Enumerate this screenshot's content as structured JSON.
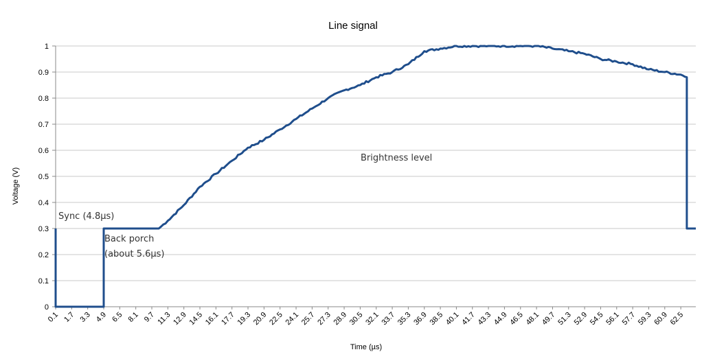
{
  "chart_data": {
    "type": "line",
    "title": "Line signal",
    "xlabel": "Time (µs)",
    "ylabel": "Voltage (V)",
    "ylim": [
      0,
      1
    ],
    "xlim": [
      0.1,
      64.0
    ],
    "grid": "horizontal",
    "legend": "none",
    "series_color": "#1f4e8c",
    "yticks": [
      "0",
      "0.1",
      "0.2",
      "0.3",
      "0.4",
      "0.5",
      "0.6",
      "0.7",
      "0.8",
      "0.9",
      "1"
    ],
    "xticks": [
      "0.1",
      "1.7",
      "3.3",
      "4.9",
      "6.5",
      "8.1",
      "9.7",
      "11.3",
      "12.9",
      "14.5",
      "16.1",
      "17.7",
      "19.3",
      "20.9",
      "22.5",
      "24.1",
      "25.7",
      "27.3",
      "28.9",
      "30.5",
      "32.1",
      "33.7",
      "35.3",
      "36.9",
      "38.5",
      "40.1",
      "41.7",
      "43.3",
      "44.9",
      "46.5",
      "48.1",
      "49.7",
      "51.3",
      "52.9",
      "54.5",
      "56.1",
      "57.7",
      "59.3",
      "60.9",
      "62.5"
    ],
    "annotations": [
      "Sync (4.8µs)",
      "Back porch",
      "(about 5.6µs)",
      "Brightness level"
    ],
    "series": [
      {
        "x": [
          0.1,
          0.1,
          4.9,
          4.9,
          10.4,
          11.3,
          12.9,
          14.5,
          16.1,
          17.7,
          19.3,
          20.9,
          22.5,
          24.1,
          25.7,
          27.3,
          28.9,
          30.5,
          32.1,
          33.7,
          35.3,
          36.9,
          38.5,
          40.1,
          41.7,
          43.3,
          44.9,
          46.5,
          48.1,
          49.7,
          51.3,
          52.9,
          54.5,
          56.1,
          57.7,
          59.3,
          60.9,
          62.5,
          63.1,
          63.1,
          64.0
        ],
        "values": [
          0.3,
          0.0,
          0.0,
          0.3,
          0.3,
          0.33,
          0.39,
          0.46,
          0.51,
          0.56,
          0.61,
          0.64,
          0.68,
          0.72,
          0.76,
          0.8,
          0.83,
          0.85,
          0.88,
          0.9,
          0.93,
          0.98,
          0.99,
          1.0,
          1.0,
          1.0,
          1.0,
          1.0,
          1.0,
          0.99,
          0.98,
          0.97,
          0.95,
          0.94,
          0.93,
          0.91,
          0.9,
          0.89,
          0.88,
          0.3,
          0.3
        ]
      }
    ]
  }
}
